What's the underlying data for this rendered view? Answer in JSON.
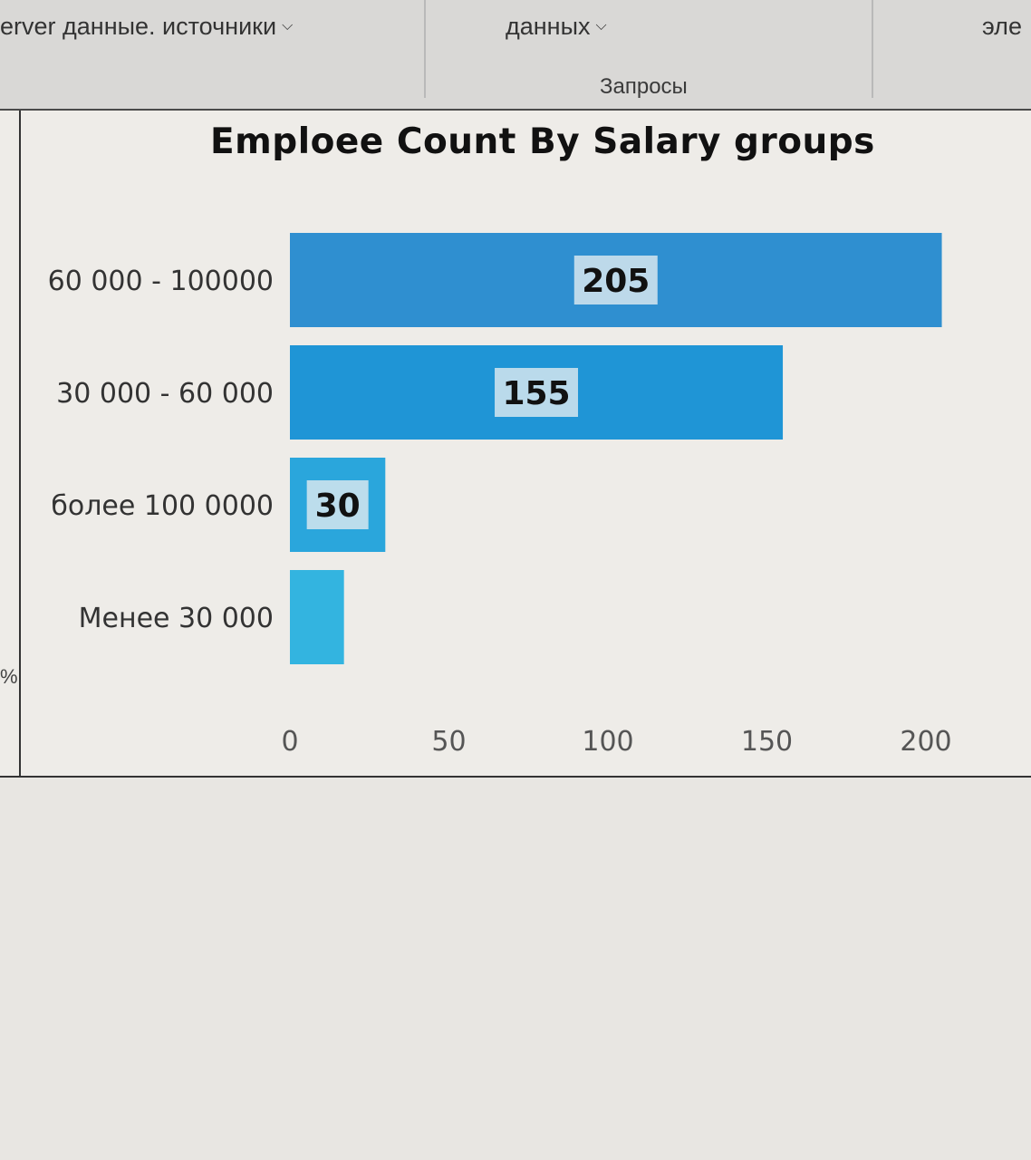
{
  "ribbon": {
    "btn_sources": "erver  данные. источники",
    "btn_data": "данных",
    "btn_right": "эле",
    "group_queries": "Запросы"
  },
  "side": {
    "pct": "%"
  },
  "colors": {
    "bar_top": "#2f8fd0",
    "bar_mid": "#1f95d6",
    "bar_lower": "#2aa6dc",
    "bar_bottom": "#33b4e0"
  },
  "chart_data": {
    "type": "bar",
    "orientation": "horizontal",
    "title": "Emploee Count By Salary groups",
    "categories": [
      "60 000 - 100000",
      "30 000 - 60 000",
      "более 100 0000",
      "Менее 30 000"
    ],
    "values": [
      205,
      155,
      30,
      17
    ],
    "data_labels": [
      "205",
      "155",
      "30",
      ""
    ],
    "xlim": [
      0,
      200
    ],
    "xticks": [
      "0",
      "50",
      "100",
      "150",
      "200"
    ],
    "grid": false,
    "legend": "none"
  }
}
